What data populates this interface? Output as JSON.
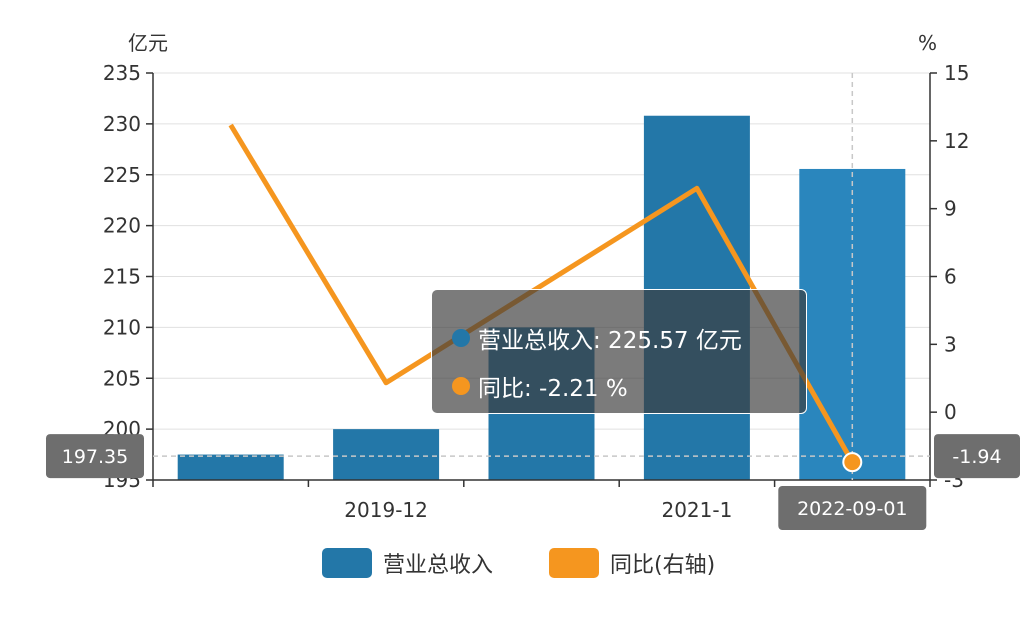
{
  "chart_data": {
    "type": "bar",
    "categories": [
      "",
      "2019-12",
      "",
      "2021-1",
      "2022-09-01"
    ],
    "x_tick_labels": [
      "2019-12",
      "2021-1"
    ],
    "series": [
      {
        "name": "营业总收入",
        "type": "bar",
        "axis": "left",
        "color": "#2377a8",
        "values": [
          197.5,
          200.0,
          210.0,
          230.8,
          225.57
        ]
      },
      {
        "name": "同比(右轴)",
        "type": "line",
        "axis": "right",
        "color": "#f5961f",
        "values": [
          12.7,
          1.3,
          null,
          9.9,
          -2.21
        ]
      }
    ],
    "left_axis": {
      "unit": "亿元",
      "min": 195,
      "max": 235,
      "ticks": [
        195,
        200,
        205,
        210,
        215,
        220,
        225,
        230,
        235
      ]
    },
    "right_axis": {
      "unit": "%",
      "min": -3,
      "max": 15,
      "ticks": [
        -3,
        0,
        3,
        6,
        9,
        12,
        15
      ]
    },
    "grid": true,
    "legend_position": "bottom-center",
    "crosshair": {
      "category_index": 4,
      "x_label": "2022-09-01",
      "y_left_label": "197.35",
      "y_right_label": "-1.94"
    },
    "tooltip": {
      "rows": [
        {
          "text": "营业总收入: 225.57 亿元",
          "color": "#2377a8"
        },
        {
          "text": "同比: -2.21 %",
          "color": "#f5961f"
        }
      ]
    }
  },
  "legend": {
    "items": [
      {
        "label": "营业总收入",
        "color": "#2377a8"
      },
      {
        "label": "同比(右轴)",
        "color": "#f5961f"
      }
    ]
  }
}
